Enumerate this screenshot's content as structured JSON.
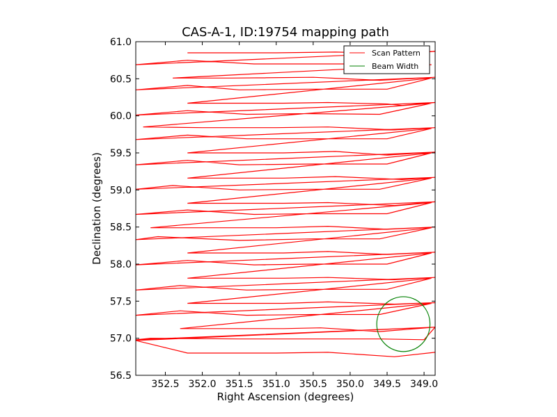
{
  "chart_data": {
    "type": "line",
    "title": "CAS-A-1, ID:19754 mapping path",
    "xlabel": "Right Ascension (degrees)",
    "ylabel": "Declination (degrees)",
    "xlim": [
      352.9,
      348.85
    ],
    "ylim": [
      56.5,
      61.0
    ],
    "x_ticks": [
      352.5,
      352.0,
      351.5,
      351.0,
      350.5,
      350.0,
      349.5,
      349.0
    ],
    "x_tick_labels": [
      "352.5",
      "352.0",
      "351.5",
      "351.0",
      "350.5",
      "350.0",
      "349.5",
      "349.0"
    ],
    "y_ticks": [
      56.5,
      57.0,
      57.5,
      58.0,
      58.5,
      59.0,
      59.5,
      60.0,
      60.5,
      61.0
    ],
    "y_tick_labels": [
      "56.5",
      "57.0",
      "57.5",
      "58.0",
      "58.5",
      "59.0",
      "59.5",
      "60.0",
      "60.5",
      "61.0"
    ],
    "grid": false,
    "legend_position": "top-right",
    "series": [
      {
        "name": "Scan Pattern",
        "color": "#ff0000",
        "points": [
          [
            352.2,
            60.85
          ],
          [
            351.0,
            60.85
          ],
          [
            350.2,
            60.86
          ],
          [
            349.3,
            60.84
          ],
          [
            348.85,
            60.87
          ],
          [
            352.9,
            60.69
          ],
          [
            352.2,
            60.75
          ],
          [
            351.3,
            60.7
          ],
          [
            350.5,
            60.7
          ],
          [
            349.6,
            60.7
          ],
          [
            348.9,
            60.69
          ],
          [
            352.4,
            60.51
          ],
          [
            351.6,
            60.51
          ],
          [
            350.5,
            60.52
          ],
          [
            349.6,
            60.48
          ],
          [
            348.85,
            60.52
          ],
          [
            352.9,
            60.35
          ],
          [
            352.2,
            60.41
          ],
          [
            351.5,
            60.35
          ],
          [
            350.5,
            60.36
          ],
          [
            349.5,
            60.36
          ],
          [
            348.9,
            60.51
          ],
          [
            352.2,
            60.17
          ],
          [
            351.4,
            60.17
          ],
          [
            350.9,
            60.17
          ],
          [
            350.3,
            60.18
          ],
          [
            349.5,
            60.16
          ],
          [
            349.3,
            60.14
          ],
          [
            348.85,
            60.18
          ],
          [
            352.9,
            60.01
          ],
          [
            352.2,
            60.07
          ],
          [
            351.4,
            60.02
          ],
          [
            350.6,
            60.03
          ],
          [
            349.6,
            60.02
          ],
          [
            348.9,
            60.17
          ],
          [
            352.8,
            59.85
          ],
          [
            352.0,
            59.84
          ],
          [
            351.0,
            59.84
          ],
          [
            350.3,
            59.85
          ],
          [
            349.4,
            59.81
          ],
          [
            348.85,
            59.84
          ],
          [
            352.9,
            59.68
          ],
          [
            352.2,
            59.74
          ],
          [
            351.4,
            59.69
          ],
          [
            350.5,
            59.69
          ],
          [
            349.5,
            59.69
          ],
          [
            348.9,
            59.83
          ],
          [
            352.2,
            59.5
          ],
          [
            351.4,
            59.5
          ],
          [
            350.9,
            59.5
          ],
          [
            350.2,
            59.52
          ],
          [
            349.5,
            59.47
          ],
          [
            348.85,
            59.51
          ],
          [
            352.9,
            59.34
          ],
          [
            352.2,
            59.4
          ],
          [
            351.5,
            59.34
          ],
          [
            350.5,
            59.35
          ],
          [
            349.5,
            59.35
          ],
          [
            348.9,
            59.5
          ],
          [
            352.2,
            59.16
          ],
          [
            351.4,
            59.16
          ],
          [
            350.9,
            59.16
          ],
          [
            350.2,
            59.18
          ],
          [
            349.5,
            59.15
          ],
          [
            349.3,
            59.14
          ],
          [
            348.85,
            59.17
          ],
          [
            352.9,
            59.01
          ],
          [
            352.4,
            59.06
          ],
          [
            351.5,
            59.0
          ],
          [
            350.5,
            59.01
          ],
          [
            349.6,
            59.01
          ],
          [
            348.9,
            59.16
          ],
          [
            352.2,
            58.82
          ],
          [
            351.4,
            58.82
          ],
          [
            350.9,
            58.82
          ],
          [
            350.3,
            58.83
          ],
          [
            349.4,
            58.79
          ],
          [
            348.85,
            58.84
          ],
          [
            352.9,
            58.67
          ],
          [
            352.2,
            58.73
          ],
          [
            351.3,
            58.67
          ],
          [
            350.5,
            58.68
          ],
          [
            349.5,
            58.68
          ],
          [
            348.9,
            58.83
          ],
          [
            352.7,
            58.49
          ],
          [
            352.0,
            58.49
          ],
          [
            351.0,
            58.49
          ],
          [
            350.3,
            58.51
          ],
          [
            349.5,
            58.47
          ],
          [
            348.85,
            58.5
          ],
          [
            352.9,
            58.33
          ],
          [
            352.6,
            58.37
          ],
          [
            351.5,
            58.32
          ],
          [
            350.5,
            58.34
          ],
          [
            349.6,
            58.34
          ],
          [
            348.9,
            58.49
          ],
          [
            352.2,
            58.15
          ],
          [
            351.4,
            58.15
          ],
          [
            350.9,
            58.15
          ],
          [
            350.3,
            58.17
          ],
          [
            349.5,
            58.13
          ],
          [
            348.85,
            58.16
          ],
          [
            352.9,
            57.99
          ],
          [
            352.2,
            58.05
          ],
          [
            351.3,
            57.99
          ],
          [
            350.5,
            58.0
          ],
          [
            349.5,
            58.0
          ],
          [
            348.9,
            58.15
          ],
          [
            352.2,
            57.81
          ],
          [
            351.4,
            57.81
          ],
          [
            350.9,
            57.81
          ],
          [
            350.3,
            57.82
          ],
          [
            349.4,
            57.79
          ],
          [
            348.85,
            57.82
          ],
          [
            352.9,
            57.65
          ],
          [
            352.3,
            57.71
          ],
          [
            351.4,
            57.65
          ],
          [
            350.5,
            57.66
          ],
          [
            349.5,
            57.66
          ],
          [
            348.9,
            57.81
          ],
          [
            352.2,
            57.47
          ],
          [
            351.4,
            57.47
          ],
          [
            350.9,
            57.47
          ],
          [
            350.3,
            57.49
          ],
          [
            349.4,
            57.46
          ],
          [
            348.85,
            57.48
          ],
          [
            352.9,
            57.31
          ],
          [
            352.3,
            57.37
          ],
          [
            351.4,
            57.31
          ],
          [
            350.5,
            57.32
          ],
          [
            349.6,
            57.32
          ],
          [
            348.9,
            57.47
          ],
          [
            352.3,
            57.13
          ],
          [
            351.4,
            57.13
          ],
          [
            350.9,
            57.13
          ],
          [
            350.4,
            57.14
          ],
          [
            349.6,
            57.09
          ],
          [
            348.85,
            57.15
          ],
          [
            352.9,
            56.98
          ],
          [
            352.7,
            57.0
          ],
          [
            351.5,
            56.99
          ],
          [
            350.5,
            56.99
          ],
          [
            349.6,
            56.99
          ],
          [
            349.0,
            56.98
          ],
          [
            348.85,
            57.15
          ],
          [
            352.9,
            56.97
          ],
          [
            352.2,
            56.8
          ],
          [
            351.0,
            56.8
          ],
          [
            350.3,
            56.81
          ],
          [
            349.4,
            56.75
          ],
          [
            348.85,
            56.81
          ]
        ]
      },
      {
        "name": "Beam Width",
        "color": "#008000",
        "shape": "circle",
        "center": [
          349.28,
          57.19
        ],
        "radius_x": 0.36,
        "radius_y": 0.37
      }
    ]
  }
}
